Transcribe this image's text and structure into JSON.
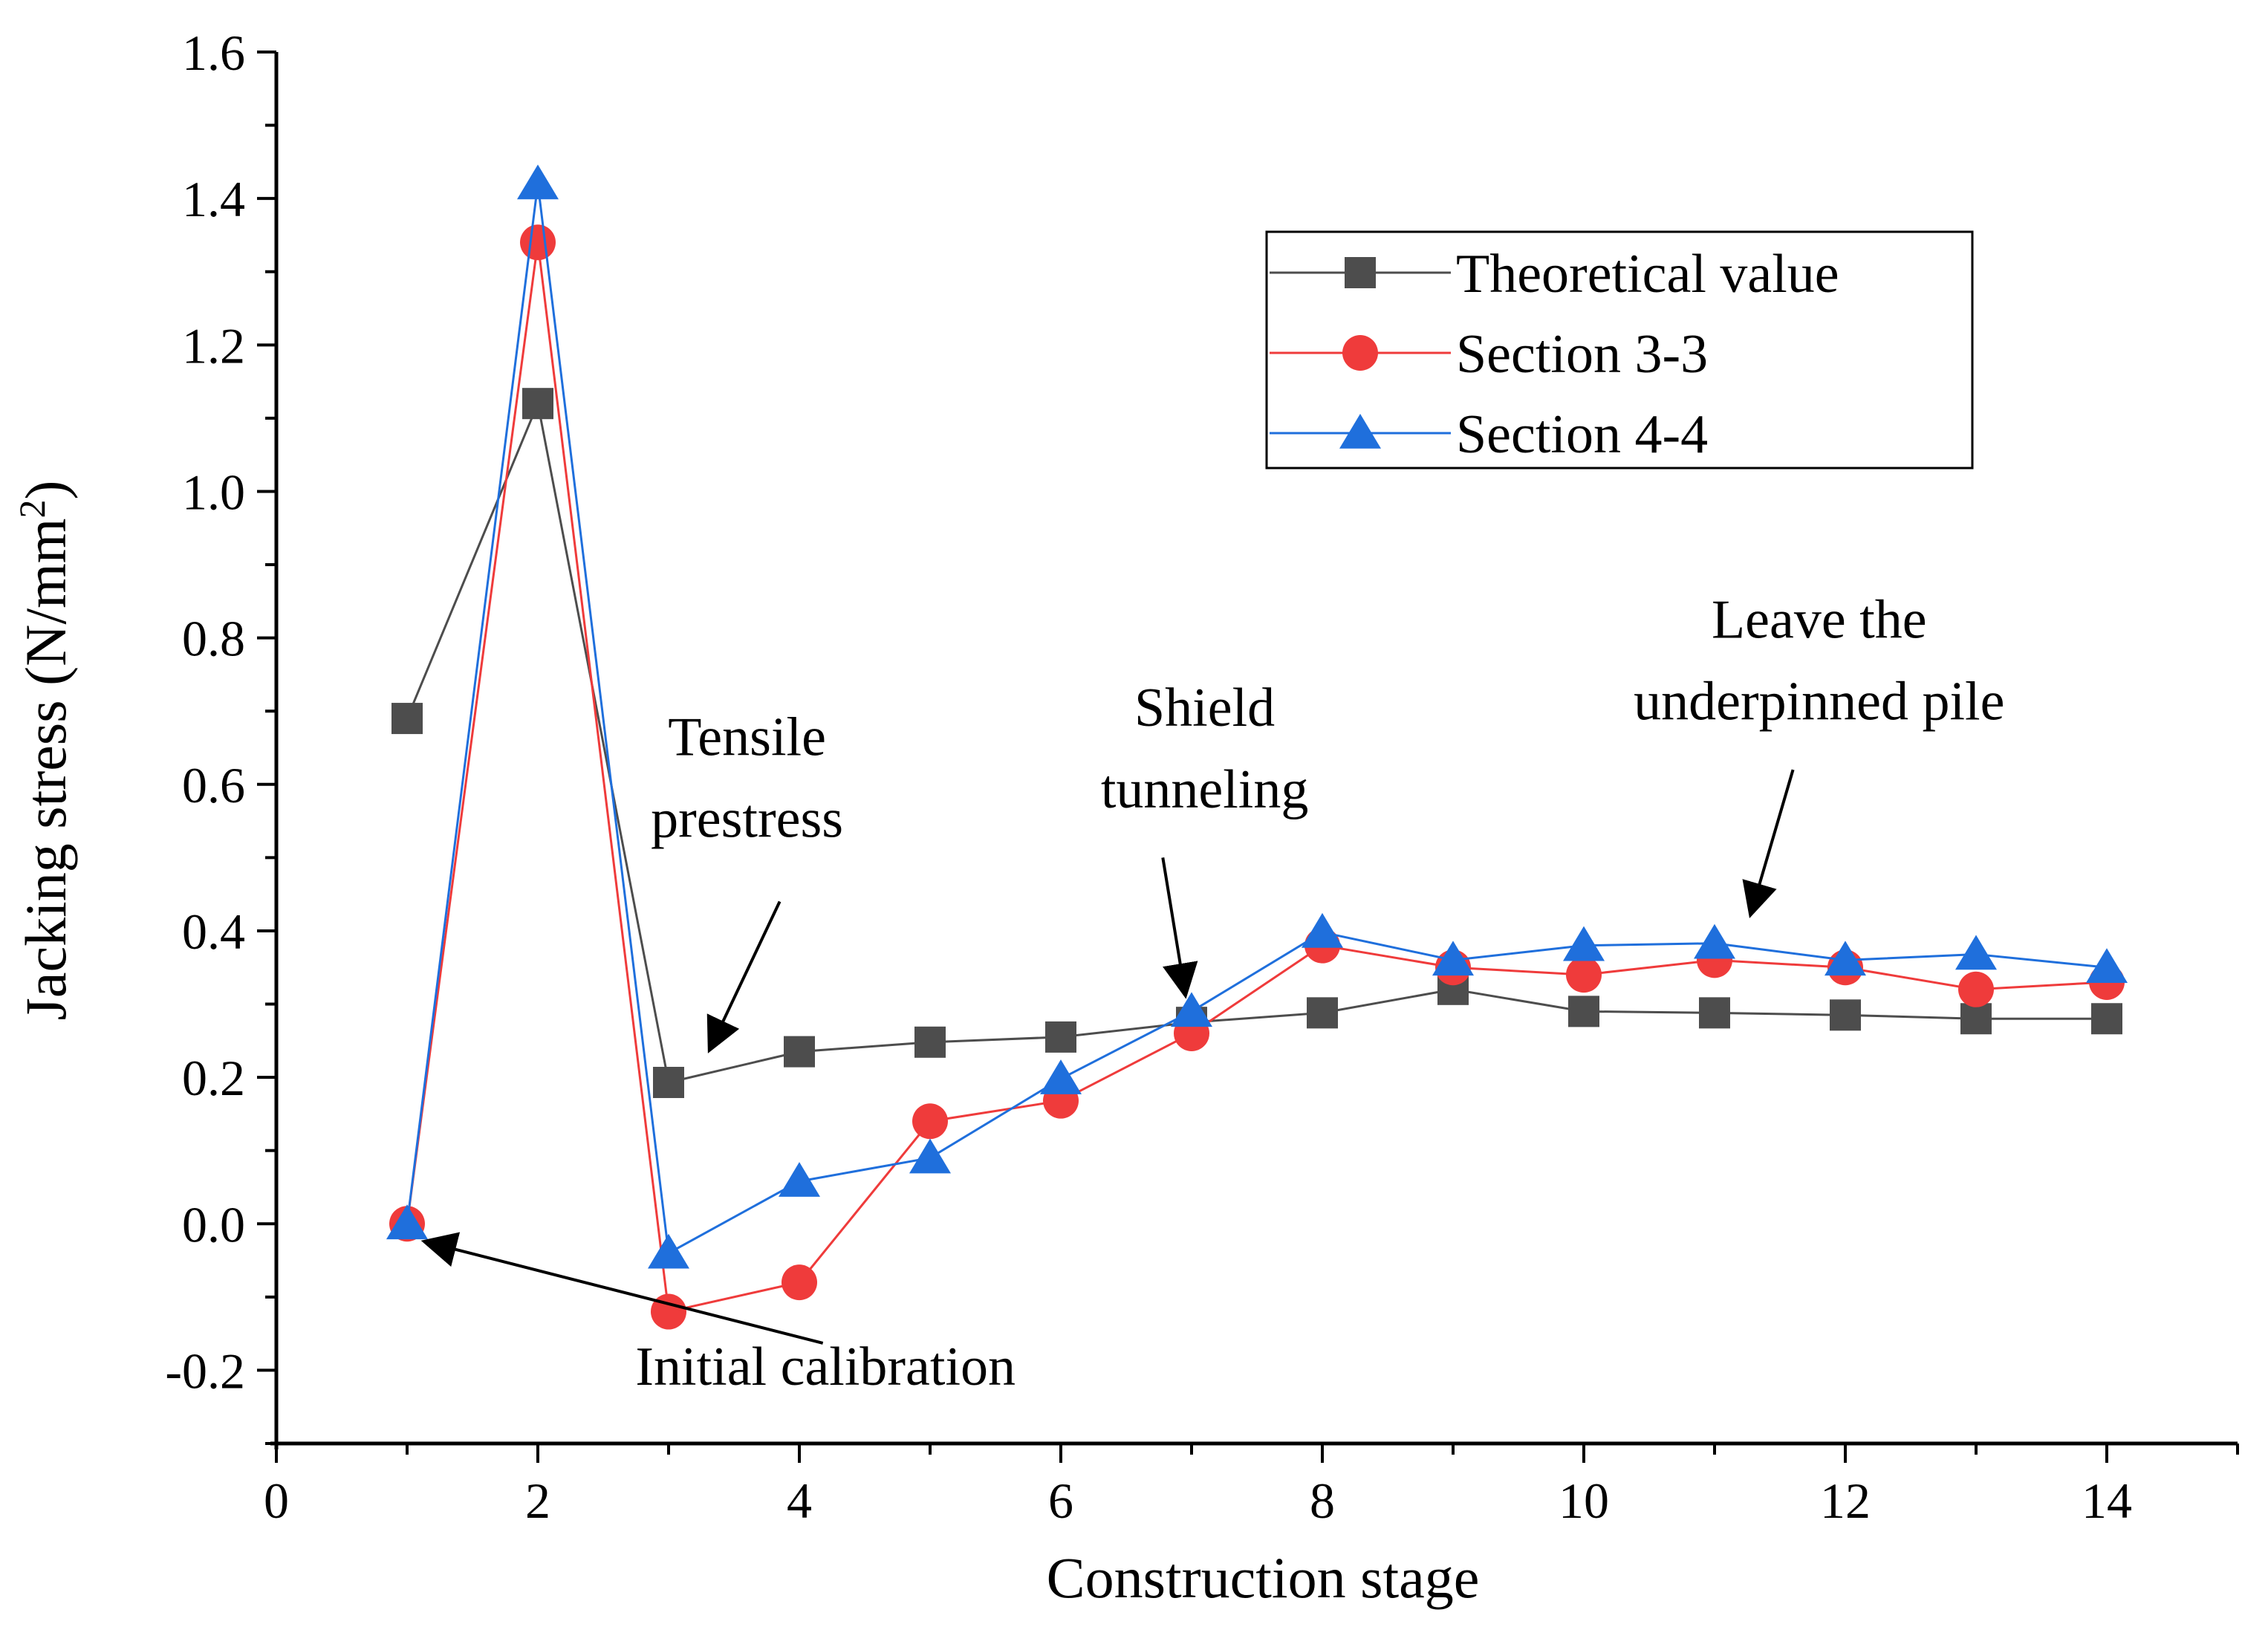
{
  "chart_data": {
    "type": "line",
    "title": "",
    "xlabel": "Construction stage",
    "ylabel_main": "Jacking stress (N/mm",
    "ylabel_sup": "2",
    "ylabel_close": ")",
    "xlim": [
      0,
      15
    ],
    "ylim": [
      -0.3,
      1.6
    ],
    "x_ticks": [
      0,
      2,
      4,
      6,
      8,
      10,
      12,
      14
    ],
    "x_tick_labels": [
      "0",
      "2",
      "4",
      "6",
      "8",
      "10",
      "12",
      "14"
    ],
    "y_ticks": [
      -0.2,
      0.0,
      0.2,
      0.4,
      0.6,
      0.8,
      1.0,
      1.2,
      1.4,
      1.6
    ],
    "y_tick_labels": [
      "-0.2",
      "0.0",
      "0.2",
      "0.4",
      "0.6",
      "0.8",
      "1.0",
      "1.2",
      "1.4",
      "1.6"
    ],
    "grid": false,
    "legend_position": "top-right",
    "series": [
      {
        "name": "Theoretical value",
        "color": "#4d4d4d",
        "marker": "square",
        "x": [
          1,
          2,
          3,
          4,
          5,
          6,
          7,
          8,
          9,
          10,
          11,
          12,
          13,
          14
        ],
        "values": [
          0.69,
          1.12,
          0.193,
          0.235,
          0.248,
          0.255,
          0.275,
          0.288,
          0.32,
          0.29,
          0.288,
          0.285,
          0.28,
          0.28
        ]
      },
      {
        "name": "Section 3-3",
        "color": "#ef3b3b",
        "marker": "circle",
        "x": [
          1,
          2,
          3,
          4,
          5,
          6,
          7,
          8,
          9,
          10,
          11,
          12,
          13,
          14
        ],
        "values": [
          0.0,
          1.34,
          -0.12,
          -0.08,
          0.14,
          0.168,
          0.26,
          0.38,
          0.35,
          0.34,
          0.36,
          0.35,
          0.32,
          0.33
        ]
      },
      {
        "name": "Section 4-4",
        "color": "#1f6fdc",
        "marker": "triangle",
        "x": [
          1,
          2,
          3,
          4,
          5,
          6,
          7,
          8,
          9,
          10,
          11,
          12,
          13,
          14
        ],
        "values": [
          0.0,
          1.42,
          -0.04,
          0.058,
          0.09,
          0.198,
          0.29,
          0.398,
          0.36,
          0.38,
          0.383,
          0.36,
          0.368,
          0.35
        ]
      }
    ],
    "annotations": [
      {
        "id": "initial",
        "lines": [
          "Initial calibration"
        ],
        "text_at": [
          4.2,
          -0.22
        ],
        "arrow_from": [
          4.18,
          -0.163
        ],
        "arrow_to": [
          1.15,
          -0.025
        ]
      },
      {
        "id": "tensile",
        "lines": [
          "Tensile",
          "prestress"
        ],
        "text_at": [
          3.6,
          0.64
        ],
        "arrow_from": [
          3.85,
          0.44
        ],
        "arrow_to": [
          3.32,
          0.24
        ]
      },
      {
        "id": "shield",
        "lines": [
          "Shield",
          "tunneling"
        ],
        "text_at": [
          7.1,
          0.68
        ],
        "arrow_from": [
          6.78,
          0.5
        ],
        "arrow_to": [
          6.95,
          0.315
        ]
      },
      {
        "id": "leave",
        "lines": [
          "Leave the",
          "underpinned pile"
        ],
        "text_at": [
          11.8,
          0.8
        ],
        "arrow_from": [
          11.6,
          0.62
        ],
        "arrow_to": [
          11.28,
          0.425
        ]
      }
    ]
  }
}
